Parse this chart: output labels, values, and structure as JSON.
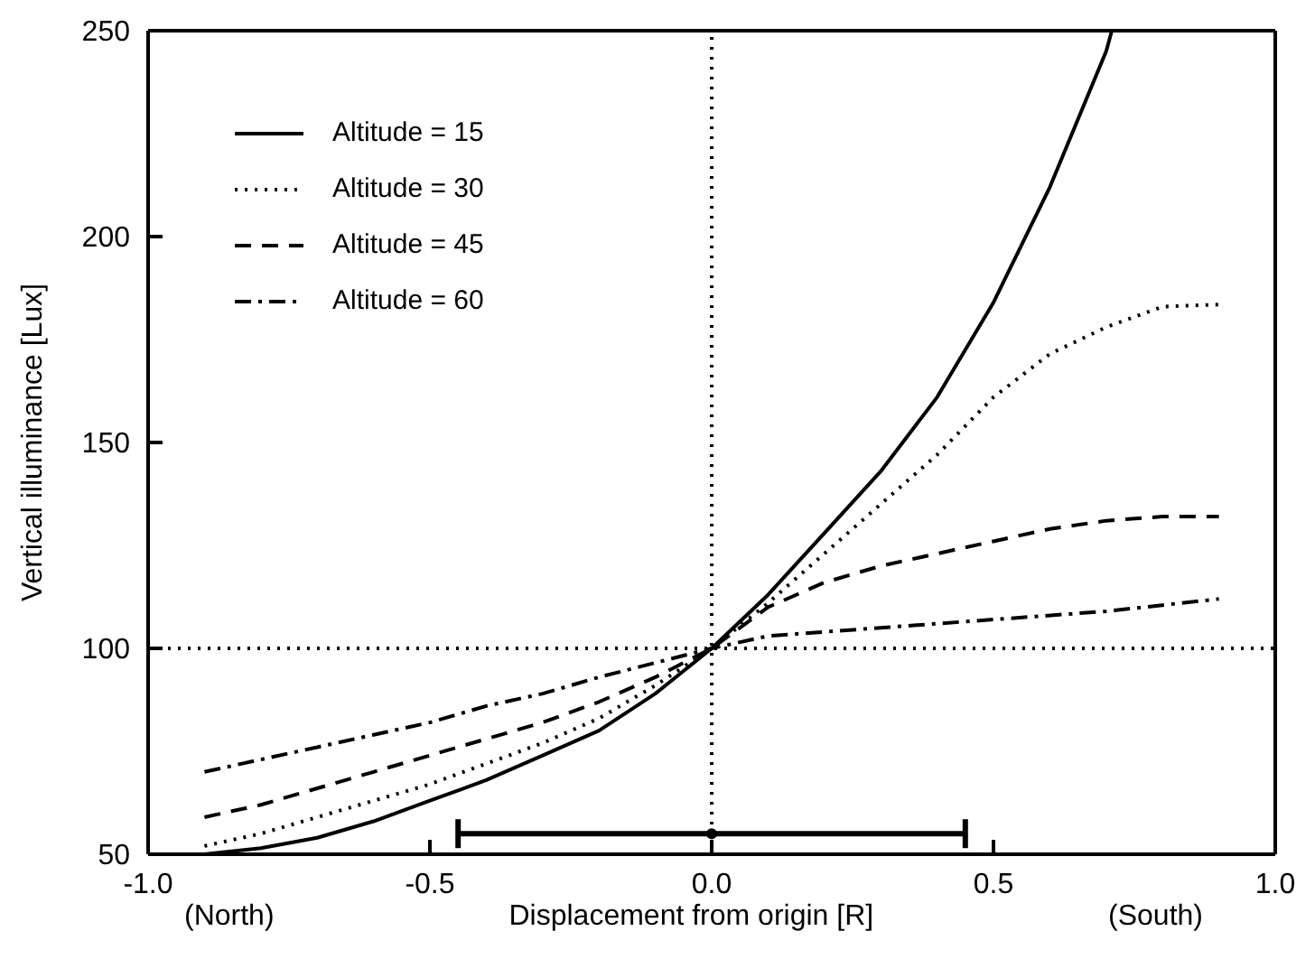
{
  "chart_data": {
    "type": "line",
    "xlabel": "Displacement from origin [R]",
    "ylabel": "Vertical illuminance [Lux]",
    "annotations": [
      "(North)",
      "(South)"
    ],
    "xlim": [
      -1.0,
      1.0
    ],
    "xticks": [
      {
        "value": -1,
        "label": "-1.0"
      },
      {
        "value": -0.5,
        "label": "-0.5"
      },
      {
        "value": 0,
        "label": "0.0"
      },
      {
        "value": 0.5,
        "label": "0.5"
      },
      {
        "value": 1,
        "label": "1.0"
      }
    ],
    "ylim": [
      50,
      250
    ],
    "yticks": [
      50,
      100,
      150,
      200,
      250
    ],
    "legend": "top left",
    "ref_lines": [
      {
        "axis": "x",
        "value": 0,
        "line_style": "dotted",
        "color": "#000000"
      },
      {
        "axis": "y",
        "value": 100,
        "line_style": "dotted",
        "color": "#000000"
      }
    ],
    "series": [
      {
        "name": "Altitude = 15",
        "color": "#000000",
        "line_style": "solid",
        "x": [
          -0.9,
          -0.8,
          -0.7,
          -0.6,
          -0.5,
          -0.4,
          -0.3,
          -0.2,
          -0.1,
          0,
          0.1,
          0.2,
          0.3,
          0.4,
          0.5,
          0.6,
          0.7,
          0.71
        ],
        "values": [
          50,
          51.5,
          54,
          58,
          63,
          68,
          74,
          80,
          89,
          100,
          113,
          128,
          143,
          161,
          184,
          212,
          245,
          250
        ]
      },
      {
        "name": "Altitude = 30",
        "color": "#000000",
        "line_style": "dotted",
        "x": [
          -0.9,
          -0.8,
          -0.7,
          -0.6,
          -0.5,
          -0.4,
          -0.3,
          -0.2,
          -0.1,
          0,
          0.1,
          0.2,
          0.3,
          0.4,
          0.5,
          0.6,
          0.7,
          0.8,
          0.9
        ],
        "values": [
          52,
          55,
          59,
          63,
          67,
          72,
          77,
          83,
          91,
          100,
          111,
          123,
          135,
          147,
          161,
          171.5,
          178,
          183,
          183.5
        ]
      },
      {
        "name": "Altitude = 45",
        "color": "#000000",
        "line_style": "dashed",
        "x": [
          -0.9,
          -0.8,
          -0.7,
          -0.6,
          -0.5,
          -0.4,
          -0.3,
          -0.2,
          -0.1,
          0,
          0.1,
          0.2,
          0.3,
          0.4,
          0.5,
          0.6,
          0.7,
          0.8,
          0.9
        ],
        "values": [
          59,
          62,
          66,
          70,
          74,
          78,
          82,
          87,
          93,
          100,
          110,
          116,
          120,
          123,
          126,
          129,
          131,
          132,
          132
        ]
      },
      {
        "name": "Altitude = 60",
        "color": "#000000",
        "line_style": "dashdot",
        "x": [
          -0.9,
          -0.8,
          -0.7,
          -0.6,
          -0.5,
          -0.4,
          -0.3,
          -0.2,
          -0.1,
          0,
          0.1,
          0.3,
          0.5,
          0.7,
          0.9
        ],
        "values": [
          70,
          73,
          76,
          79,
          82,
          86,
          89,
          93,
          96.5,
          100,
          103,
          105,
          107,
          109,
          112
        ]
      },
      {
        "type": "scatter",
        "color": "#000000",
        "x": [
          0
        ],
        "values": [
          55
        ],
        "xerrors": [
          0.45
        ]
      }
    ]
  }
}
